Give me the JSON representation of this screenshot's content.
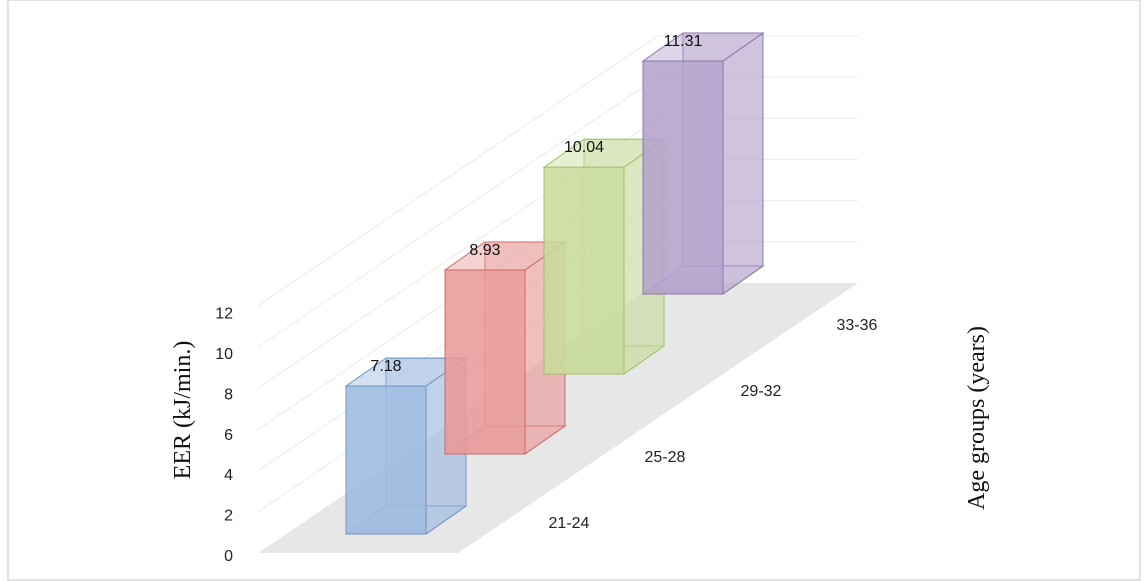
{
  "chart_data": {
    "type": "bar",
    "style": "3d-column",
    "categories": [
      "21-24",
      "25-28",
      "29-32",
      "33-36"
    ],
    "values": [
      7.18,
      8.93,
      10.04,
      11.31
    ],
    "value_labels": [
      "7.18",
      "8.93",
      "10.04",
      "11.31"
    ],
    "colors": [
      "#9dbbe0",
      "#e89a9a",
      "#c8db9b",
      "#b4a2cc"
    ],
    "edge_colors": [
      "#7394c4",
      "#c96c6c",
      "#a6c06a",
      "#8d77ad"
    ],
    "ylabel": "EER (kJ/min.)",
    "depth_label": "Age groups (years)",
    "yticks": [
      "0",
      "2",
      "4",
      "6",
      "8",
      "10",
      "12"
    ],
    "ylim": [
      0,
      12
    ],
    "grid": true
  }
}
